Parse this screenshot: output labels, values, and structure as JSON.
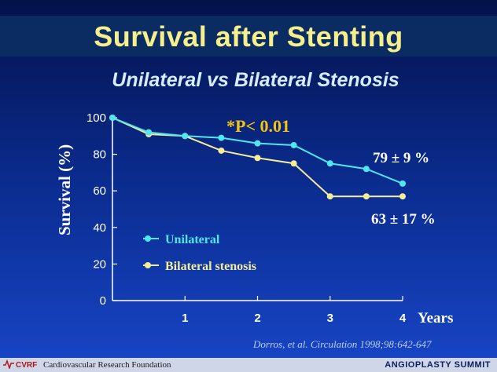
{
  "slide": {
    "title": "Survival after Stenting",
    "subtitle": "Unilateral vs Bilateral Stenosis",
    "p_value": "*P< 0.01",
    "annotation_unilateral": "79 ± 9 %",
    "annotation_bilateral": "63 ± 17 %",
    "citation": "Dorros, et al. Circulation 1998;98:642-647",
    "footer_logo": "CVRF",
    "footer_org": "Cardiovascular Research Foundation",
    "footer_event": "ANGIOPLASTY SUMMIT"
  },
  "colors": {
    "unilateral": "#4fe6ee",
    "bilateral": "#f4ec96",
    "title": "#f5f08c",
    "p_value": "#f2c315"
  },
  "chart_data": {
    "type": "line",
    "title": "",
    "xlabel": "Years",
    "ylabel": "Survival (%)",
    "xlim": [
      0,
      4
    ],
    "ylim": [
      0,
      100
    ],
    "xticks": [
      1,
      2,
      3,
      4
    ],
    "yticks": [
      0,
      20,
      40,
      60,
      80,
      100
    ],
    "grid": false,
    "legend": "lower-left",
    "series": [
      {
        "name": "Unilateral",
        "color": "#4fe6ee",
        "points": [
          [
            0,
            100
          ],
          [
            0.5,
            92
          ],
          [
            1,
            90
          ],
          [
            1.5,
            89
          ],
          [
            2,
            86
          ],
          [
            2.5,
            85
          ],
          [
            3,
            75
          ],
          [
            3.5,
            72
          ],
          [
            4,
            64
          ]
        ]
      },
      {
        "name": "Bilateral stenosis",
        "color": "#f4ec96",
        "points": [
          [
            0,
            100
          ],
          [
            0.5,
            91
          ],
          [
            1,
            90
          ],
          [
            1.5,
            82
          ],
          [
            2,
            78
          ],
          [
            2.5,
            75
          ],
          [
            3,
            57
          ],
          [
            3.5,
            57
          ],
          [
            4,
            57
          ]
        ]
      }
    ]
  }
}
